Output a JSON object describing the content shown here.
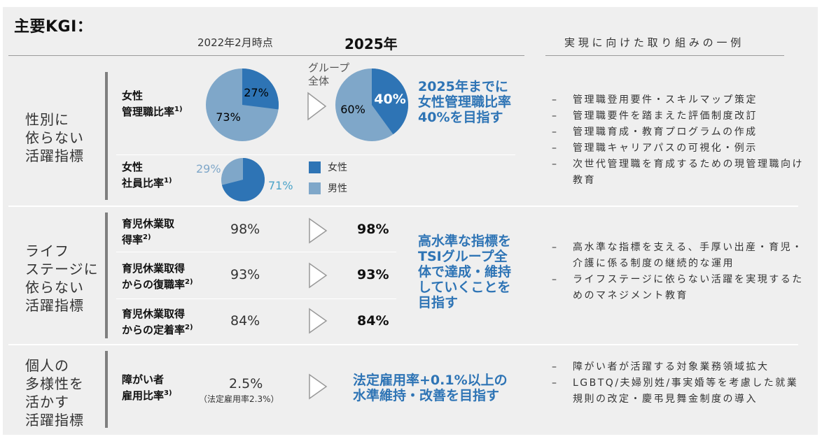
{
  "title": "主要KGI：",
  "headers": {
    "current": "2022年2月時点",
    "target": "2025年",
    "initiatives": "実 現 に 向 け た 取 り 組 み の 一 例"
  },
  "colors": {
    "female": "#2e74b5",
    "male": "#7fa7c9",
    "accent_text": "#2e74b5"
  },
  "section1": {
    "category": [
      "性別に",
      "依らない",
      "活躍指標"
    ],
    "metric1": {
      "line1": "女性",
      "line2": "管理職比率",
      "note": "1)"
    },
    "pie1": {
      "female_label": "27%",
      "male_label": "73%",
      "female_fraction": 0.27
    },
    "group_label": [
      "グループ",
      "全体"
    ],
    "pie2": {
      "female_label": "40%",
      "male_label": "60%",
      "female_fraction": 0.4
    },
    "target_text": [
      "2025年までに",
      "女性管理職比率",
      "40%を目指す"
    ],
    "metric2": {
      "line1": "女性",
      "line2": "社員比率",
      "note": "1)"
    },
    "pie3": {
      "male_label": "29%",
      "female_label": "71%",
      "female_fraction": 0.71
    },
    "legend": {
      "female": "女性",
      "male": "男性"
    },
    "initiatives": [
      "管理職登用要件・スキルマップ策定",
      "管理職要件を踏まえた評価制度改訂",
      "管理職育成・教育プログラムの作成",
      "管理職キャリアパスの可視化・例示",
      "次世代管理職を育成するための現管理職向け教育"
    ]
  },
  "section2": {
    "category": [
      "ライフ",
      "ステージに",
      "依らない",
      "活躍指標"
    ],
    "rows": [
      {
        "line1": "育児休業取",
        "line2": "得率",
        "note": "2)",
        "current": "98%",
        "target": "98%"
      },
      {
        "line1": "育児休業取得",
        "line2": "からの復職率",
        "note": "2)",
        "current": "93%",
        "target": "93%"
      },
      {
        "line1": "育児休業取得",
        "line2": "からの定着率",
        "note": "2)",
        "current": "84%",
        "target": "84%"
      }
    ],
    "target_text": [
      "高水準な指標を",
      "TSIグループ全",
      "体で達成・維持",
      "していくことを",
      "目指す"
    ],
    "initiatives": [
      "高水準な指標を支える、手厚い出産・育児・介護に係る制度の継続的な運用",
      "ライフステージに依らない活躍を実現するためのマネジメント教育"
    ]
  },
  "section3": {
    "category": [
      "個人の",
      "多様性を",
      "活かす",
      "活躍指標"
    ],
    "metric": {
      "line1": "障がい者",
      "line2": "雇用比率",
      "note": "3)"
    },
    "current": "2.5%",
    "current_note": "（法定雇用率2.3%）",
    "target_text": [
      "法定雇用率+0.1%以上の",
      "水準維持・改善を目指す"
    ],
    "initiatives": [
      "障がい者が活躍する対象業務領域拡大",
      "LGBTQ/夫婦別姓/事実婚等を考慮した就業規則の改定・慶弔見舞金制度の導入"
    ]
  }
}
